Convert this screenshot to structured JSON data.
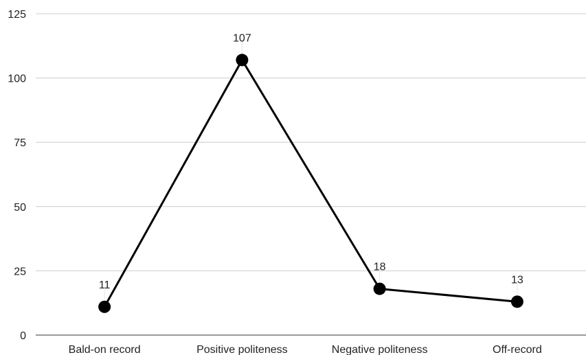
{
  "chart_data": {
    "type": "line",
    "categories": [
      "Bald-on record",
      "Positive politeness",
      "Negative politeness",
      "Off-record"
    ],
    "values": [
      11,
      107,
      18,
      13
    ],
    "data_labels": [
      "11",
      "107",
      "18",
      "13"
    ],
    "yticks": [
      0,
      25,
      50,
      75,
      100,
      125
    ],
    "ylim": [
      0,
      125
    ],
    "grid": true,
    "legend": "none",
    "title": "",
    "xlabel": "",
    "ylabel": "",
    "colors": {
      "line": "#000000",
      "marker": "#000000",
      "grid": "#cccccc",
      "axis": "#333333"
    }
  }
}
